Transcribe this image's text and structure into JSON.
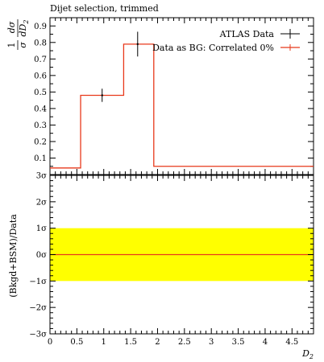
{
  "chart_data": [
    {
      "type": "line",
      "title": "Dijet selection, trimmed",
      "xlabel": "D_2",
      "ylabel_num": "dσ",
      "ylabel_den": "dD",
      "ylabel_den_sub": "2",
      "ylabel_prefix_num": "1",
      "ylabel_prefix_den": "σ",
      "xlim": [
        0,
        4.9
      ],
      "ylim": [
        0.0,
        0.95
      ],
      "yticks": [
        "0.1",
        "0.2",
        "0.3",
        "0.4",
        "0.5",
        "0.6",
        "0.7",
        "0.8",
        "0.9"
      ],
      "ytick_values": [
        0.1,
        0.2,
        0.3,
        0.4,
        0.5,
        0.6,
        0.7,
        0.8,
        0.9
      ],
      "legend_position": "top-right",
      "series": [
        {
          "name": "ATLAS Data",
          "color": "#000000",
          "points": [
            {
              "x": 0.97,
              "y": 0.48,
              "err": 0.04
            },
            {
              "x": 1.63,
              "y": 0.79,
              "err": 0.075
            }
          ]
        },
        {
          "name": "Data as BG: Correlated 0%",
          "color": "#e8391b",
          "bins": [
            {
              "lo": 0.0,
              "hi": 0.57,
              "y": 0.04
            },
            {
              "lo": 0.57,
              "hi": 1.37,
              "y": 0.48
            },
            {
              "lo": 1.37,
              "hi": 1.93,
              "y": 0.79
            },
            {
              "lo": 1.93,
              "hi": 4.9,
              "y": 0.05
            }
          ]
        }
      ]
    },
    {
      "type": "area",
      "ylabel": "(Bkgd+BSM)/Data",
      "xlabel": "D_2",
      "xlim": [
        0,
        4.9
      ],
      "ylim": [
        -3,
        3
      ],
      "yticks": [
        "3σ",
        "2σ",
        "1σ",
        "0σ",
        "−1σ",
        "−2σ",
        "−3σ"
      ],
      "ytick_values": [
        3,
        2,
        1,
        0,
        -1,
        -2,
        -3
      ],
      "xticks": [
        "0",
        "0.5",
        "1",
        "1.5",
        "2",
        "2.5",
        "3",
        "3.5",
        "4",
        "4.5"
      ],
      "xtick_values": [
        0,
        0.5,
        1,
        1.5,
        2,
        2.5,
        3,
        3.5,
        4,
        4.5
      ],
      "band": {
        "lo": -1,
        "hi": 1,
        "color": "#ffff00"
      },
      "line": {
        "y": 0,
        "color": "#e8391b"
      }
    }
  ]
}
